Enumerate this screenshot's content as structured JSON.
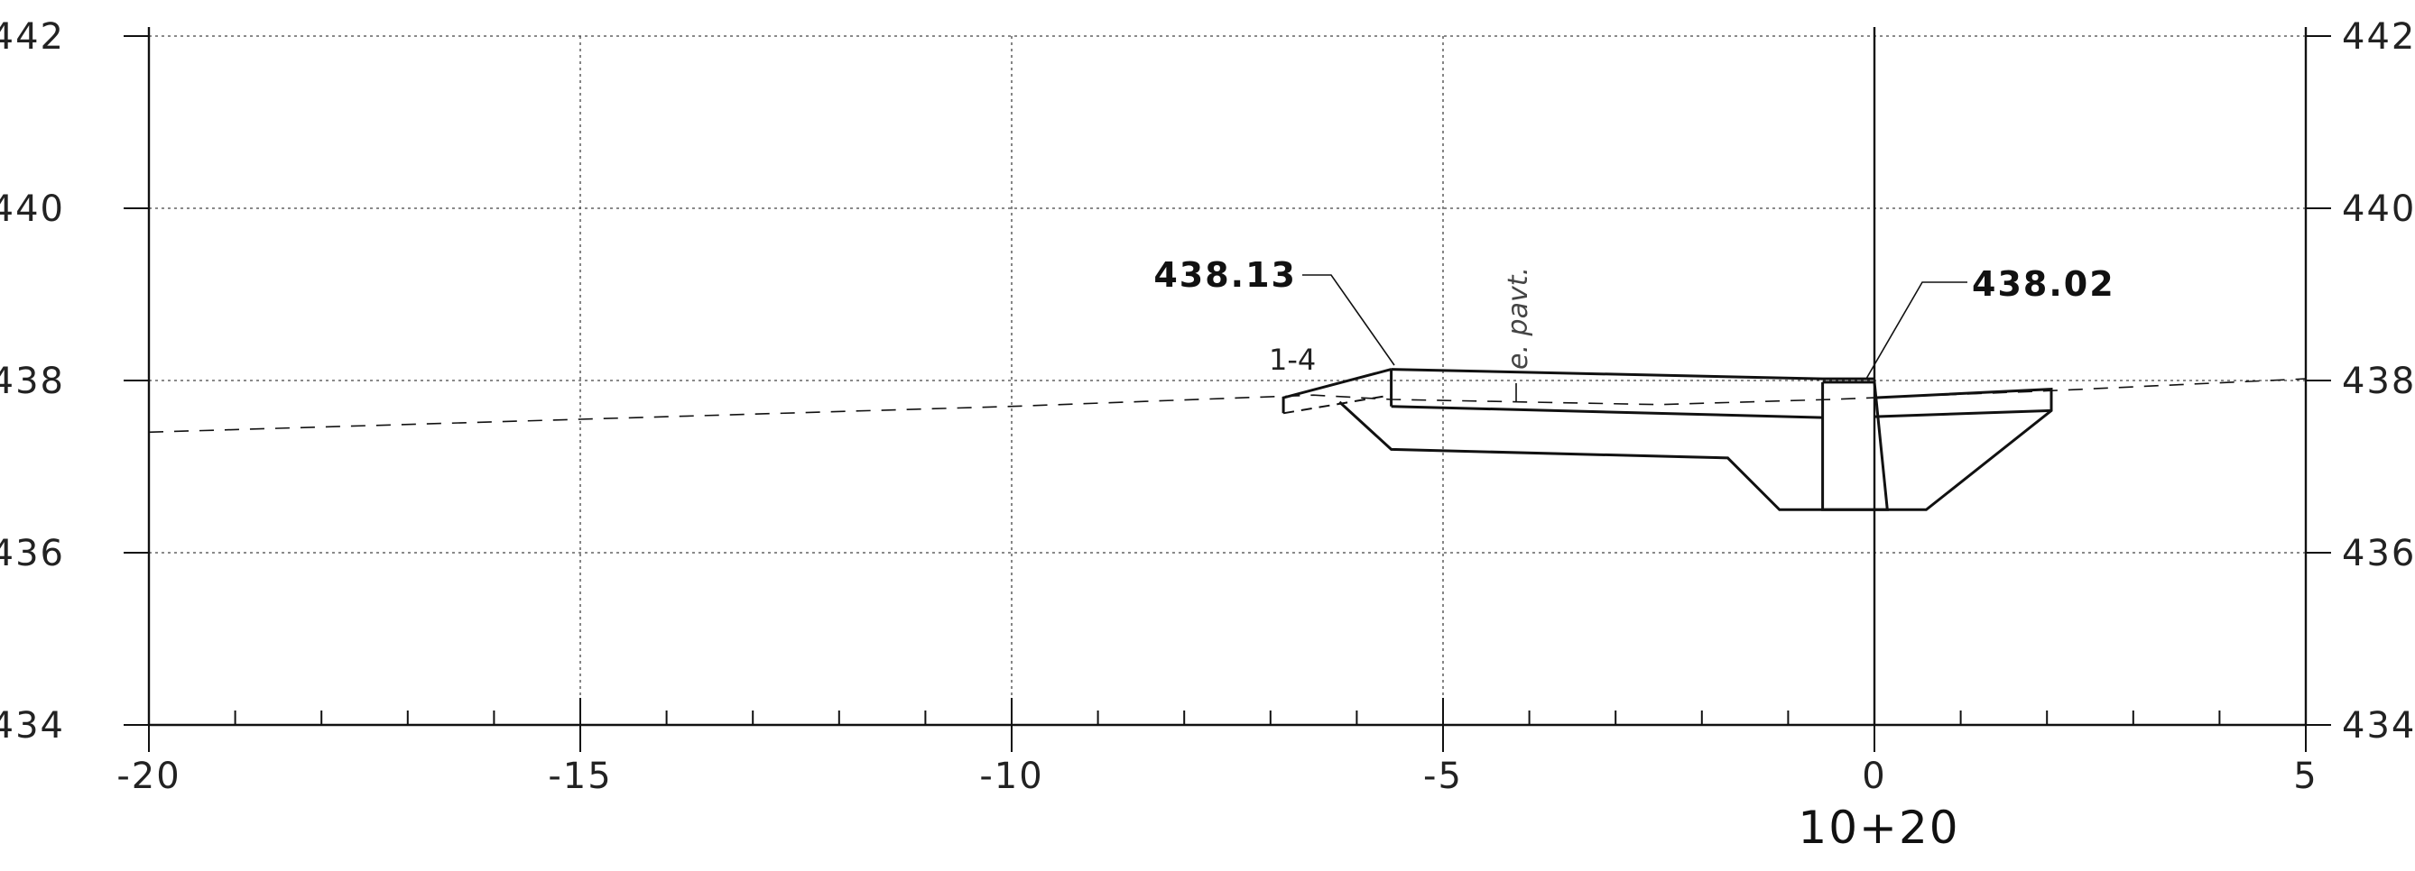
{
  "x_axis": {
    "ticks": [
      {
        "value": -20,
        "label": "-20"
      },
      {
        "value": -15,
        "label": "-15"
      },
      {
        "value": -10,
        "label": "-10"
      },
      {
        "value": -5,
        "label": "-5"
      },
      {
        "value": 0,
        "label": "0"
      },
      {
        "value": 5,
        "label": "5"
      }
    ],
    "station_label": "10+20"
  },
  "y_axis": {
    "ticks": [
      {
        "value": 442,
        "label": "442"
      },
      {
        "value": 440,
        "label": "440"
      },
      {
        "value": 438,
        "label": "438"
      },
      {
        "value": 436,
        "label": "436"
      },
      {
        "value": 434,
        "label": "434"
      }
    ]
  },
  "annotations": {
    "left_elevation": "438.13",
    "right_elevation": "438.02",
    "slope_label": "1-4",
    "pavement_note": "e. pavt."
  },
  "profiles": {
    "existing_ground": [
      [
        -20,
        437.4
      ],
      [
        -15,
        437.55
      ],
      [
        -10,
        437.7
      ],
      [
        -6.5,
        437.83
      ],
      [
        -5.6,
        437.78
      ],
      [
        -2.5,
        437.72
      ],
      [
        -0.5,
        437.78
      ],
      [
        0,
        437.8
      ],
      [
        2,
        437.88
      ],
      [
        5,
        438.02
      ]
    ],
    "finished_grade": [
      [
        -5.6,
        438.13
      ],
      [
        -0.6,
        438.02
      ],
      [
        0,
        438.02
      ]
    ],
    "slab_bottom": [
      [
        -5.6,
        437.7
      ],
      [
        -0.6,
        437.57
      ]
    ],
    "left_wall": [
      [
        -5.6,
        438.13
      ],
      [
        -5.6,
        437.7
      ]
    ],
    "left_slope_outer": [
      [
        -6.85,
        437.62
      ],
      [
        -6.85,
        437.8
      ],
      [
        -5.6,
        438.13
      ]
    ],
    "left_slope_inner": [
      [
        -6.85,
        437.62
      ],
      [
        -5.6,
        437.83
      ]
    ],
    "left_footing": [
      [
        -6.2,
        437.75
      ],
      [
        -5.6,
        437.2
      ],
      [
        -1.7,
        437.1
      ],
      [
        -1.1,
        436.5
      ],
      [
        0.6,
        436.5
      ],
      [
        2.05,
        437.65
      ],
      [
        2.05,
        437.9
      ],
      [
        0,
        437.8
      ]
    ],
    "right_apron": [
      [
        0,
        437.58
      ],
      [
        2.05,
        437.65
      ]
    ],
    "barrier_box": [
      [
        -0.6,
        437.98
      ],
      [
        0,
        437.98
      ],
      [
        0.15,
        436.5
      ],
      [
        -0.6,
        436.5
      ],
      [
        -0.6,
        437.98
      ]
    ]
  }
}
